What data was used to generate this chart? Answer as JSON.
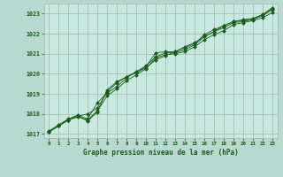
{
  "title": "Graphe pression niveau de la mer (hPa)",
  "background_color": "#b8d8d0",
  "plot_bg_color": "#c8e8e0",
  "grid_color": "#a0b8a8",
  "line_color": "#1a5c1a",
  "marker_color": "#1a5c1a",
  "xlim": [
    -0.5,
    23.5
  ],
  "ylim": [
    1016.8,
    1023.5
  ],
  "yticks": [
    1017,
    1018,
    1019,
    1020,
    1021,
    1022,
    1023
  ],
  "xticks": [
    0,
    1,
    2,
    3,
    4,
    5,
    6,
    7,
    8,
    9,
    10,
    11,
    12,
    13,
    14,
    15,
    16,
    17,
    18,
    19,
    20,
    21,
    22,
    23
  ],
  "series": [
    [
      1017.1,
      1017.4,
      1017.7,
      1017.85,
      1017.7,
      1018.15,
      1018.9,
      1019.25,
      1019.65,
      1019.95,
      1020.25,
      1020.8,
      1020.95,
      1021.0,
      1021.1,
      1021.35,
      1021.7,
      1021.95,
      1022.15,
      1022.45,
      1022.55,
      1022.65,
      1022.8,
      1023.05
    ],
    [
      1017.15,
      1017.45,
      1017.75,
      1017.95,
      1017.75,
      1018.55,
      1019.05,
      1019.35,
      1019.8,
      1020.1,
      1020.4,
      1020.85,
      1021.05,
      1021.05,
      1021.2,
      1021.45,
      1021.85,
      1022.1,
      1022.3,
      1022.55,
      1022.6,
      1022.7,
      1022.9,
      1023.2
    ],
    [
      1017.1,
      1017.4,
      1017.7,
      1017.9,
      1018.0,
      1018.3,
      1019.1,
      1019.55,
      1019.85,
      1020.05,
      1020.3,
      1020.7,
      1020.9,
      1021.1,
      1021.35,
      1021.55,
      1021.85,
      1022.1,
      1022.4,
      1022.6,
      1022.7,
      1022.75,
      1022.95,
      1023.25
    ],
    [
      1017.1,
      1017.4,
      1017.7,
      1017.9,
      1017.65,
      1018.1,
      1019.2,
      1019.6,
      1019.85,
      1020.1,
      1020.35,
      1021.05,
      1021.1,
      1021.1,
      1021.3,
      1021.5,
      1021.95,
      1022.2,
      1022.4,
      1022.6,
      1022.65,
      1022.75,
      1022.95,
      1023.3
    ]
  ],
  "marker_types": [
    "D",
    "D",
    "D",
    "D"
  ]
}
